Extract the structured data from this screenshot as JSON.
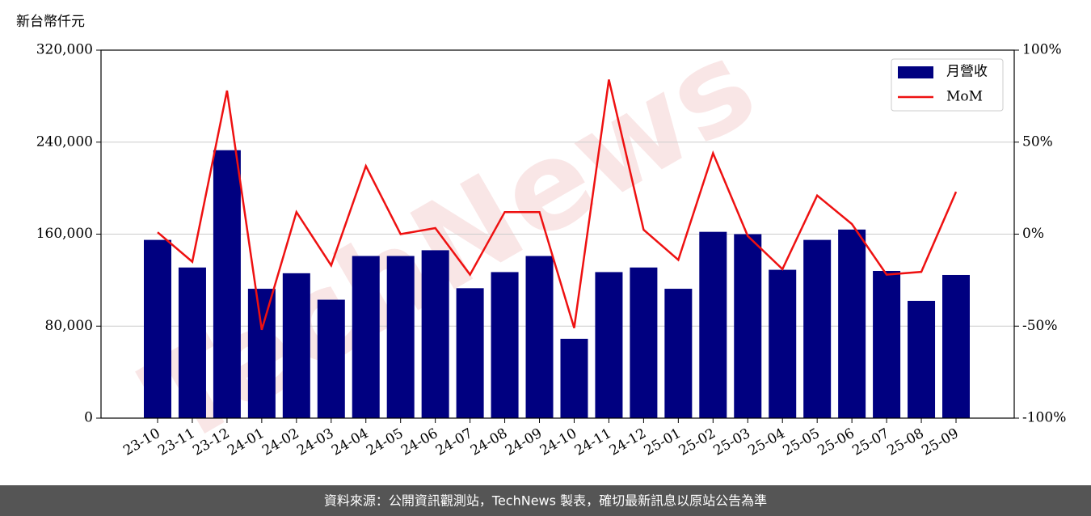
{
  "chart_data": {
    "type": "bar-line",
    "unit_label": "新台幣仟元",
    "watermark": "TechNews",
    "footer": "資料來源：公開資訊觀測站，TechNews 製表，確切最新訊息以原站公告為準",
    "categories": [
      "23-10",
      "23-11",
      "23-12",
      "24-01",
      "24-02",
      "24-03",
      "24-04",
      "24-05",
      "24-06",
      "24-07",
      "24-08",
      "24-09",
      "24-10",
      "24-11",
      "24-12",
      "25-01",
      "25-02",
      "25-03",
      "25-04",
      "25-05",
      "25-06",
      "25-07",
      "25-08",
      "25-09"
    ],
    "series": [
      {
        "name": "月營收",
        "type": "bar",
        "color": "#000080",
        "values": [
          155000,
          131000,
          233000,
          112500,
          126000,
          103000,
          141000,
          141000,
          146000,
          113000,
          127000,
          141000,
          69000,
          127000,
          131000,
          112500,
          162000,
          160000,
          129000,
          155000,
          164000,
          128000,
          102000,
          124500
        ]
      },
      {
        "name": "MoM",
        "type": "line",
        "axis": "y2",
        "color": "#ee1111",
        "values": [
          1,
          -15,
          78,
          -52,
          12,
          -17,
          37,
          0,
          3.3,
          -22,
          12,
          12,
          -51,
          84,
          2.4,
          -14,
          44,
          -1,
          -19,
          21,
          5.5,
          -22,
          -20.5,
          23
        ]
      }
    ],
    "ylim": [
      0,
      320000
    ],
    "yticks": [
      0,
      {
        "value": 80000,
        "label": "80,000"
      },
      {
        "value": 160000,
        "label": "160,000"
      },
      {
        "value": 240000,
        "label": "240,000"
      },
      {
        "value": 320000,
        "label": "320,000"
      }
    ],
    "y2lim": [
      -100,
      100
    ],
    "y2ticks": [
      {
        "value": -100,
        "label": "-100%"
      },
      {
        "value": -50,
        "label": "-50%"
      },
      {
        "value": 0,
        "label": "0%"
      },
      {
        "value": 50,
        "label": "50%"
      },
      {
        "value": 100,
        "label": "100%"
      }
    ],
    "grid": true,
    "legend": "upper right"
  }
}
